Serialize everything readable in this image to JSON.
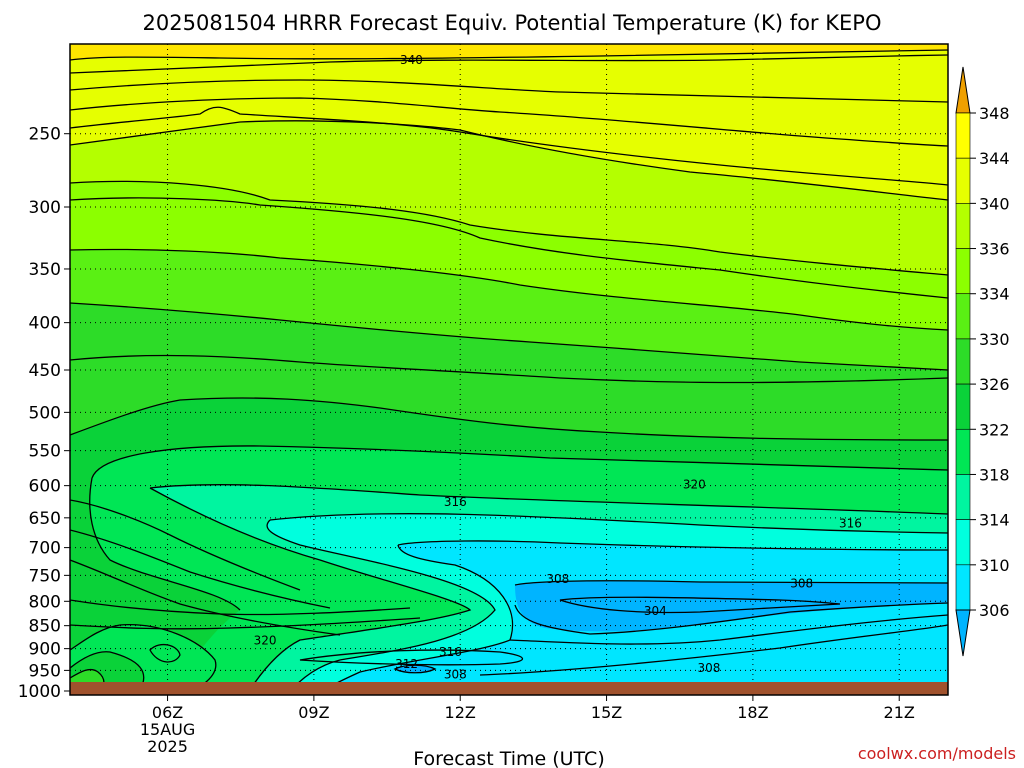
{
  "title": "2025081504 HRRR Forecast Equiv. Potential Temperature (K) for KEPO",
  "x_axis_title": "Forecast Time (UTC)",
  "credit": "coolwx.com/models",
  "colors": {
    "credit": "#cc2020",
    "ground": "#a0522d",
    "palette": [
      "#00b4ff",
      "#00e6ff",
      "#00ffde",
      "#00f5a0",
      "#00e655",
      "#0ad239",
      "#2ddc28",
      "#5af014",
      "#8cff00",
      "#b4ff00",
      "#e6ff00",
      "#ffff00",
      "#ffe600",
      "#ffc800",
      "#f0a000"
    ]
  },
  "chart_data": {
    "type": "contour",
    "variable": "Equiv. Potential Temperature (K)",
    "x_ticks": [
      {
        "hour": 6,
        "label": "06Z",
        "sublabels": [
          "15AUG",
          "2025"
        ]
      },
      {
        "hour": 9,
        "label": "09Z",
        "sublabels": []
      },
      {
        "hour": 12,
        "label": "12Z",
        "sublabels": []
      },
      {
        "hour": 15,
        "label": "15Z",
        "sublabels": []
      },
      {
        "hour": 18,
        "label": "18Z",
        "sublabels": []
      },
      {
        "hour": 21,
        "label": "21Z",
        "sublabels": []
      }
    ],
    "x_range_hours": [
      4,
      22
    ],
    "y_axis": {
      "type": "log-pressure",
      "unit": "hPa",
      "range": [
        1010,
        200
      ]
    },
    "y_ticks": [
      250,
      300,
      350,
      400,
      450,
      500,
      550,
      600,
      650,
      700,
      750,
      800,
      850,
      900,
      950,
      1000
    ],
    "colorbar_levels": [
      306,
      310,
      314,
      318,
      322,
      326,
      330,
      334,
      336,
      340,
      344,
      348
    ],
    "contour_labels": [
      {
        "text": "340",
        "hour": 11.0,
        "p": 208
      },
      {
        "text": "320",
        "hour": 16.8,
        "p": 598
      },
      {
        "text": "316",
        "hour": 11.9,
        "p": 625
      },
      {
        "text": "316",
        "hour": 20.0,
        "p": 659
      },
      {
        "text": "308",
        "hour": 14.0,
        "p": 757
      },
      {
        "text": "308",
        "hour": 19.0,
        "p": 765
      },
      {
        "text": "304",
        "hour": 16.0,
        "p": 820
      },
      {
        "text": "320",
        "hour": 8.0,
        "p": 882
      },
      {
        "text": "316",
        "hour": 11.8,
        "p": 907
      },
      {
        "text": "312",
        "hour": 10.9,
        "p": 935
      },
      {
        "text": "308",
        "hour": 11.9,
        "p": 960
      },
      {
        "text": "308",
        "hour": 17.1,
        "p": 944
      }
    ],
    "grid": "dotted"
  }
}
